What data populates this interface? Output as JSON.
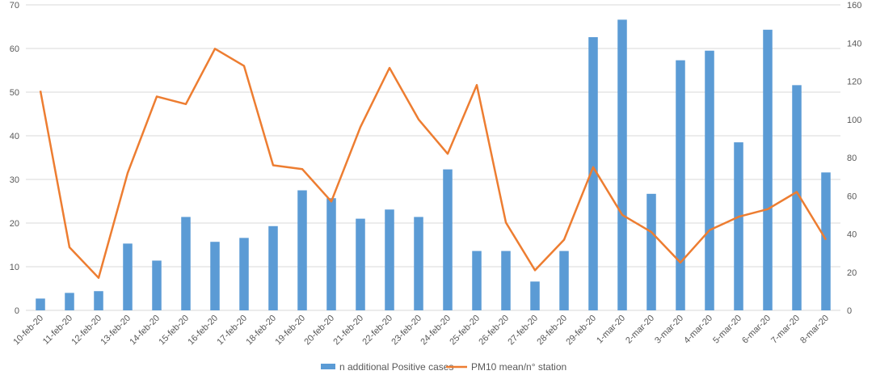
{
  "chart_data": {
    "type": "bar+line",
    "categories": [
      "10-feb-20",
      "11-feb-20",
      "12-feb-20",
      "13-feb-20",
      "14-feb-20",
      "15-feb-20",
      "16-feb-20",
      "17-feb-20",
      "18-feb-20",
      "19-feb-20",
      "20-feb-20",
      "21-feb-20",
      "22-feb-20",
      "23-feb-20",
      "24-feb-20",
      "25-feb-20",
      "26-feb-20",
      "27-feb-20",
      "28-feb-20",
      "29-feb-20",
      "1-mar-20",
      "2-mar-20",
      "3-mar-20",
      "4-mar-20",
      "5-mar-20",
      "6-mar-20",
      "7-mar-20",
      "8-mar-20"
    ],
    "series": [
      {
        "name": "n additional Positive cases",
        "type": "bar",
        "axis": "left",
        "color": "#5b9bd5",
        "values": [
          2.7,
          4.0,
          4.4,
          15.3,
          11.4,
          21.4,
          15.7,
          16.6,
          19.3,
          27.5,
          25.7,
          21.0,
          23.1,
          21.4,
          32.3,
          13.6,
          13.6,
          6.6,
          13.6,
          62.6,
          66.6,
          26.7,
          57.3,
          59.5,
          38.5,
          64.3,
          51.6,
          31.6
        ]
      },
      {
        "name": "PM10 mean/n° station",
        "type": "line",
        "axis": "right",
        "color": "#ed7d31",
        "values": [
          115,
          33,
          17,
          72,
          112,
          108,
          137,
          128,
          76,
          74,
          57,
          96,
          127,
          100,
          82,
          118,
          46,
          21,
          37,
          75,
          50,
          41,
          25,
          42,
          49,
          53,
          62,
          37
        ]
      }
    ],
    "ylim_left": [
      0,
      70
    ],
    "ylim_right": [
      0,
      160
    ],
    "yticks_left": [
      "0",
      "10",
      "20",
      "30",
      "40",
      "50",
      "60",
      "70"
    ],
    "yticks_right": [
      "0",
      "20",
      "40",
      "60",
      "80",
      "100",
      "120",
      "140",
      "160"
    ],
    "grid": true,
    "legend_position": "bottom"
  }
}
